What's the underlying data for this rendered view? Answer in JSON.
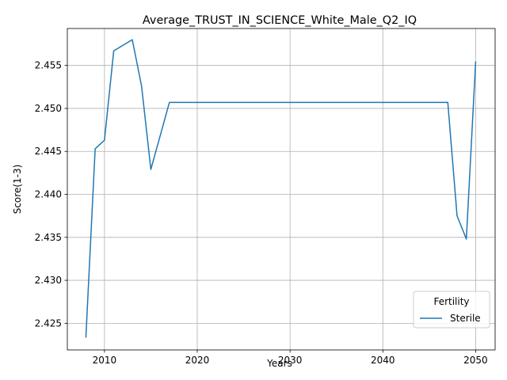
{
  "chart_data": {
    "type": "line",
    "title": "Average_TRUST_IN_SCIENCE_White_Male_Q2_IQ",
    "xlabel": "Years",
    "ylabel": "Score(1-3)",
    "xlim": [
      2006,
      2052.1
    ],
    "ylim": [
      2.4219,
      2.4593
    ],
    "x_ticks": [
      2010,
      2020,
      2030,
      2040,
      2050
    ],
    "y_ticks": [
      2.425,
      2.43,
      2.435,
      2.44,
      2.445,
      2.45,
      2.455
    ],
    "y_tick_labels": [
      "2.425",
      "2.430",
      "2.435",
      "2.440",
      "2.445",
      "2.450",
      "2.455"
    ],
    "grid": true,
    "legend": {
      "title": "Fertility",
      "placement": "lower-right"
    },
    "series": [
      {
        "name": "Sterile",
        "color": "#1f77b4",
        "points": [
          [
            2008,
            2.4234
          ],
          [
            2009,
            2.4453
          ],
          [
            2010,
            2.4463
          ],
          [
            2011,
            2.4567
          ],
          [
            2013,
            2.458
          ],
          [
            2014,
            2.4526
          ],
          [
            2015,
            2.4429
          ],
          [
            2017,
            2.4507
          ],
          [
            2047,
            2.4507
          ],
          [
            2048,
            2.4375
          ],
          [
            2049,
            2.4348
          ],
          [
            2050,
            2.4554
          ]
        ]
      }
    ]
  }
}
